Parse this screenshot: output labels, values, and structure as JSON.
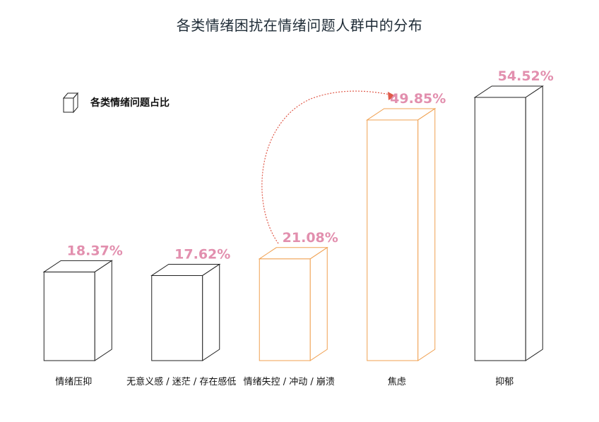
{
  "title": "各类情绪困扰在情绪问题人群中的分布",
  "legend": {
    "label": "各类情绪问题占比"
  },
  "colors": {
    "bar_default": "#222222",
    "bar_highlight": "#f0a050",
    "value_label": "#e28fae",
    "arrow": "#e05a4a",
    "title_highlight": "#8ccbd1"
  },
  "chart_data": {
    "type": "bar",
    "style": "3d-box",
    "categories": [
      "情绪压抑",
      "无意义感 / 迷茫 / 存在感低",
      "情绪失控 / 冲动 / 崩溃",
      "焦虑",
      "抑郁"
    ],
    "values": [
      18.37,
      17.62,
      21.08,
      49.85,
      54.52
    ],
    "value_labels": [
      "18.37%",
      "17.62%",
      "21.08%",
      "49.85%",
      "54.52%"
    ],
    "highlighted": [
      false,
      false,
      true,
      true,
      false
    ],
    "series": [
      {
        "name": "各类情绪问题占比",
        "values": [
          18.37,
          17.62,
          21.08,
          49.85,
          54.52
        ]
      }
    ],
    "title": "各类情绪困扰在情绪问题人群中的分布",
    "xlabel": "",
    "ylabel": "",
    "ylim": [
      0,
      60
    ],
    "grid": false,
    "legend_position": "top-left",
    "annotation": {
      "type": "curved-arrow",
      "from_category": "情绪失控 / 冲动 / 崩溃",
      "to_category": "焦虑"
    }
  }
}
